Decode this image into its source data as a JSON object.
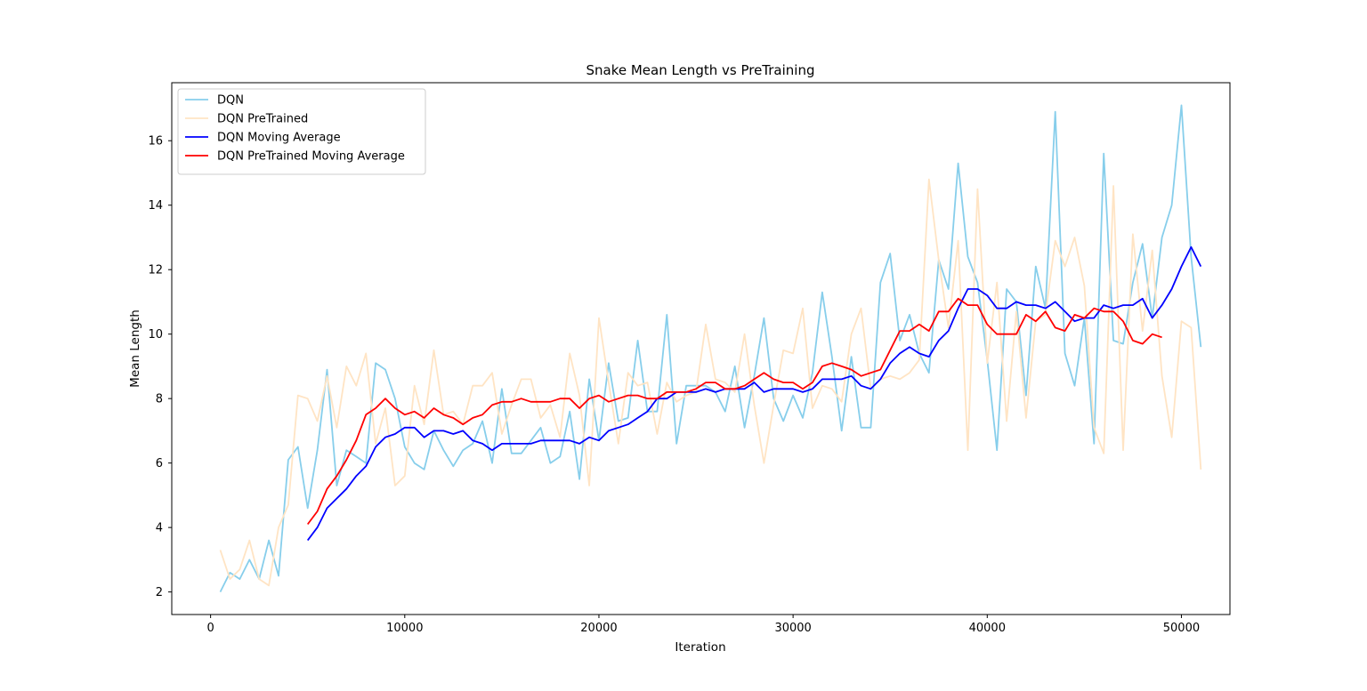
{
  "chart_data": {
    "type": "line",
    "title": "Snake Mean Length vs PreTraining",
    "xlabel": "Iteration",
    "ylabel": "Mean Length",
    "xlim": [
      -2000,
      52500
    ],
    "ylim": [
      1.3,
      17.8
    ],
    "xticks": [
      0,
      10000,
      20000,
      30000,
      40000,
      50000
    ],
    "yticks": [
      2,
      4,
      6,
      8,
      10,
      12,
      14,
      16
    ],
    "grid": false,
    "legend_position": "upper left",
    "series": [
      {
        "name": "DQN",
        "color": "#87ceeb",
        "x_start": 500,
        "x_step": 500,
        "values": [
          2.0,
          2.6,
          2.4,
          3.0,
          2.4,
          3.6,
          2.5,
          6.1,
          6.5,
          4.6,
          6.4,
          8.9,
          5.3,
          6.4,
          6.2,
          6.0,
          9.1,
          8.9,
          8.0,
          6.5,
          6.0,
          5.8,
          7.0,
          6.4,
          5.9,
          6.4,
          6.6,
          7.3,
          6.0,
          8.3,
          6.3,
          6.3,
          6.7,
          7.1,
          6.0,
          6.2,
          7.6,
          5.5,
          8.6,
          6.7,
          9.1,
          7.3,
          7.4,
          9.8,
          7.6,
          7.6,
          10.6,
          6.6,
          8.4,
          8.4,
          8.4,
          8.2,
          7.6,
          9.0,
          7.1,
          8.7,
          10.5,
          8.0,
          7.3,
          8.1,
          7.4,
          8.8,
          11.3,
          9.3,
          7.0,
          9.3,
          7.1,
          7.1,
          11.6,
          12.5,
          9.8,
          10.6,
          9.4,
          8.8,
          12.3,
          11.4,
          15.3,
          12.4,
          11.6,
          9.2,
          6.4,
          11.4,
          11.0,
          8.1,
          12.1,
          10.8,
          16.9,
          9.4,
          8.4,
          10.5,
          6.6,
          15.6,
          9.8,
          9.7,
          11.6,
          12.8,
          10.5,
          13.0,
          14.0,
          17.1,
          12.4,
          9.6
        ]
      },
      {
        "name": "DQN PreTrained",
        "color": "#ffe4c4",
        "x_start": 500,
        "x_step": 500,
        "values": [
          3.3,
          2.4,
          2.7,
          3.6,
          2.4,
          2.2,
          4.0,
          4.7,
          8.1,
          8.0,
          7.3,
          8.7,
          7.1,
          9.0,
          8.4,
          9.4,
          6.6,
          7.7,
          5.3,
          5.6,
          8.4,
          7.2,
          9.5,
          7.5,
          7.6,
          7.2,
          8.4,
          8.4,
          8.8,
          6.9,
          7.8,
          8.6,
          8.6,
          7.4,
          7.8,
          6.8,
          9.4,
          8.1,
          5.3,
          10.5,
          8.5,
          6.6,
          8.8,
          8.4,
          8.5,
          6.9,
          8.5,
          7.9,
          8.1,
          8.2,
          10.3,
          8.6,
          8.5,
          8.2,
          10.0,
          7.8,
          6.0,
          7.8,
          9.5,
          9.4,
          10.8,
          7.7,
          8.4,
          8.3,
          7.9,
          10.0,
          10.8,
          8.3,
          8.6,
          8.7,
          8.6,
          8.8,
          9.2,
          14.8,
          12.3,
          10.2,
          12.9,
          6.4,
          14.5,
          9.1,
          11.6,
          7.3,
          10.7,
          7.4,
          10.4,
          10.6,
          12.9,
          12.1,
          13.0,
          11.5,
          7.1,
          6.3,
          14.6,
          6.4,
          13.1,
          10.1,
          12.6,
          8.7,
          6.8,
          10.4,
          10.2,
          5.8
        ]
      },
      {
        "name": "DQN Moving Average",
        "color": "#0000ff",
        "x_start": 5000,
        "x_step": 500,
        "values": [
          3.6,
          4.0,
          4.6,
          4.9,
          5.2,
          5.6,
          5.9,
          6.5,
          6.8,
          6.9,
          7.1,
          7.1,
          6.8,
          7.0,
          7.0,
          6.9,
          7.0,
          6.7,
          6.6,
          6.4,
          6.6,
          6.6,
          6.6,
          6.6,
          6.7,
          6.7,
          6.7,
          6.7,
          6.6,
          6.8,
          6.7,
          7.0,
          7.1,
          7.2,
          7.4,
          7.6,
          8.0,
          8.0,
          8.2,
          8.2,
          8.2,
          8.3,
          8.2,
          8.3,
          8.3,
          8.3,
          8.5,
          8.2,
          8.3,
          8.3,
          8.3,
          8.2,
          8.3,
          8.6,
          8.6,
          8.6,
          8.7,
          8.4,
          8.3,
          8.6,
          9.1,
          9.4,
          9.6,
          9.4,
          9.3,
          9.8,
          10.1,
          10.8,
          11.4,
          11.4,
          11.2,
          10.8,
          10.8,
          11.0,
          10.9,
          10.9,
          10.8,
          11.0,
          10.7,
          10.4,
          10.5,
          10.5,
          10.9,
          10.8,
          10.9,
          10.9,
          11.1,
          10.5,
          10.9,
          11.4,
          12.1,
          12.7,
          12.1
        ]
      },
      {
        "name": "DQN PreTrained Moving Average",
        "color": "#ff0000",
        "x_start": 5000,
        "x_step": 500,
        "values": [
          4.1,
          4.5,
          5.2,
          5.6,
          6.1,
          6.7,
          7.5,
          7.7,
          8.0,
          7.7,
          7.5,
          7.6,
          7.4,
          7.7,
          7.5,
          7.4,
          7.2,
          7.4,
          7.5,
          7.8,
          7.9,
          7.9,
          8.0,
          7.9,
          7.9,
          7.9,
          8.0,
          8.0,
          7.7,
          8.0,
          8.1,
          7.9,
          8.0,
          8.1,
          8.1,
          8.0,
          8.0,
          8.2,
          8.2,
          8.2,
          8.3,
          8.5,
          8.5,
          8.3,
          8.3,
          8.4,
          8.6,
          8.8,
          8.6,
          8.5,
          8.5,
          8.3,
          8.5,
          9.0,
          9.1,
          9.0,
          8.9,
          8.7,
          8.8,
          8.9,
          9.5,
          10.1,
          10.1,
          10.3,
          10.1,
          10.7,
          10.7,
          11.1,
          10.9,
          10.9,
          10.3,
          10.0,
          10.0,
          10.0,
          10.6,
          10.4,
          10.7,
          10.2,
          10.1,
          10.6,
          10.5,
          10.8,
          10.7,
          10.7,
          10.4,
          9.8,
          9.7,
          10.0,
          9.9
        ]
      }
    ]
  }
}
